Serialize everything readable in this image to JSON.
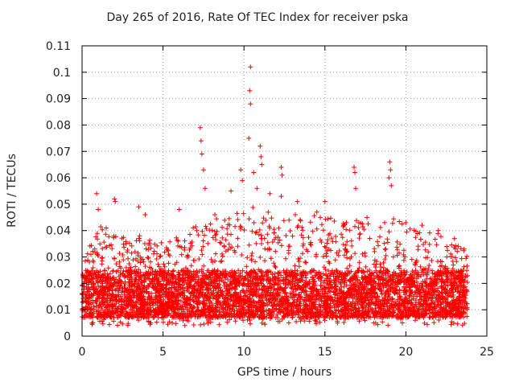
{
  "chart_data": {
    "type": "scatter",
    "title": "Day 265 of 2016, Rate Of TEC Index for receiver pska",
    "xlabel": "GPS time / hours",
    "ylabel": "ROTI / TECUs",
    "xlim": [
      0,
      25
    ],
    "ylim": [
      0,
      0.11
    ],
    "xticks": [
      "0",
      "5",
      "10",
      "15",
      "20",
      "25"
    ],
    "xtick_values": [
      0,
      5,
      10,
      15,
      20,
      25
    ],
    "yticks": [
      "0",
      "0.01",
      "0.02",
      "0.03",
      "0.04",
      "0.05",
      "0.06",
      "0.07",
      "0.08",
      "0.09",
      "0.1",
      "0.11"
    ],
    "ytick_values": [
      0,
      0.01,
      0.02,
      0.03,
      0.04,
      0.05,
      0.06,
      0.07,
      0.08,
      0.09,
      0.1,
      0.11
    ],
    "grid": true,
    "marker": "+",
    "color": "#ff0000",
    "data_x_range": [
      0,
      23.8
    ],
    "series": [
      {
        "name": "ROTI",
        "points": [
          [
            0.9,
            0.054
          ],
          [
            1.0,
            0.048
          ],
          [
            2.0,
            0.052
          ],
          [
            2.05,
            0.051
          ],
          [
            3.5,
            0.049
          ],
          [
            3.9,
            0.046
          ],
          [
            6.0,
            0.048
          ],
          [
            7.3,
            0.079
          ],
          [
            7.35,
            0.074
          ],
          [
            7.4,
            0.069
          ],
          [
            7.5,
            0.063
          ],
          [
            7.6,
            0.056
          ],
          [
            8.2,
            0.046
          ],
          [
            9.2,
            0.055
          ],
          [
            9.8,
            0.063
          ],
          [
            9.9,
            0.059
          ],
          [
            10.4,
            0.102
          ],
          [
            10.35,
            0.093
          ],
          [
            10.4,
            0.088
          ],
          [
            10.3,
            0.075
          ],
          [
            10.6,
            0.062
          ],
          [
            10.8,
            0.056
          ],
          [
            11.0,
            0.072
          ],
          [
            11.05,
            0.068
          ],
          [
            11.1,
            0.065
          ],
          [
            11.6,
            0.054
          ],
          [
            12.3,
            0.064
          ],
          [
            12.35,
            0.061
          ],
          [
            12.3,
            0.053
          ],
          [
            13.3,
            0.051
          ],
          [
            14.5,
            0.047
          ],
          [
            15.0,
            0.051
          ],
          [
            16.8,
            0.064
          ],
          [
            16.85,
            0.062
          ],
          [
            16.9,
            0.056
          ],
          [
            17.6,
            0.045
          ],
          [
            19.0,
            0.066
          ],
          [
            19.05,
            0.063
          ],
          [
            18.95,
            0.06
          ],
          [
            19.1,
            0.057
          ],
          [
            20.0,
            0.043
          ],
          [
            21.0,
            0.042
          ],
          [
            22.0,
            0.04
          ],
          [
            23.0,
            0.037
          ],
          [
            23.6,
            0.033
          ]
        ],
        "band": {
          "description": "dense cloud of points across 0-23.8 h",
          "typical_low": 0.007,
          "typical_high": 0.025,
          "upper_envelope": [
            [
              0,
              0.028
            ],
            [
              1,
              0.042
            ],
            [
              2,
              0.04
            ],
            [
              3,
              0.036
            ],
            [
              4,
              0.04
            ],
            [
              5,
              0.036
            ],
            [
              6,
              0.038
            ],
            [
              7,
              0.042
            ],
            [
              8,
              0.044
            ],
            [
              9,
              0.046
            ],
            [
              10,
              0.05
            ],
            [
              11,
              0.048
            ],
            [
              12,
              0.046
            ],
            [
              13,
              0.048
            ],
            [
              14,
              0.046
            ],
            [
              15,
              0.046
            ],
            [
              16,
              0.044
            ],
            [
              17,
              0.044
            ],
            [
              18,
              0.042
            ],
            [
              19,
              0.046
            ],
            [
              20,
              0.042
            ],
            [
              21,
              0.04
            ],
            [
              22,
              0.04
            ],
            [
              23,
              0.035
            ],
            [
              23.8,
              0.032
            ]
          ]
        }
      }
    ]
  }
}
